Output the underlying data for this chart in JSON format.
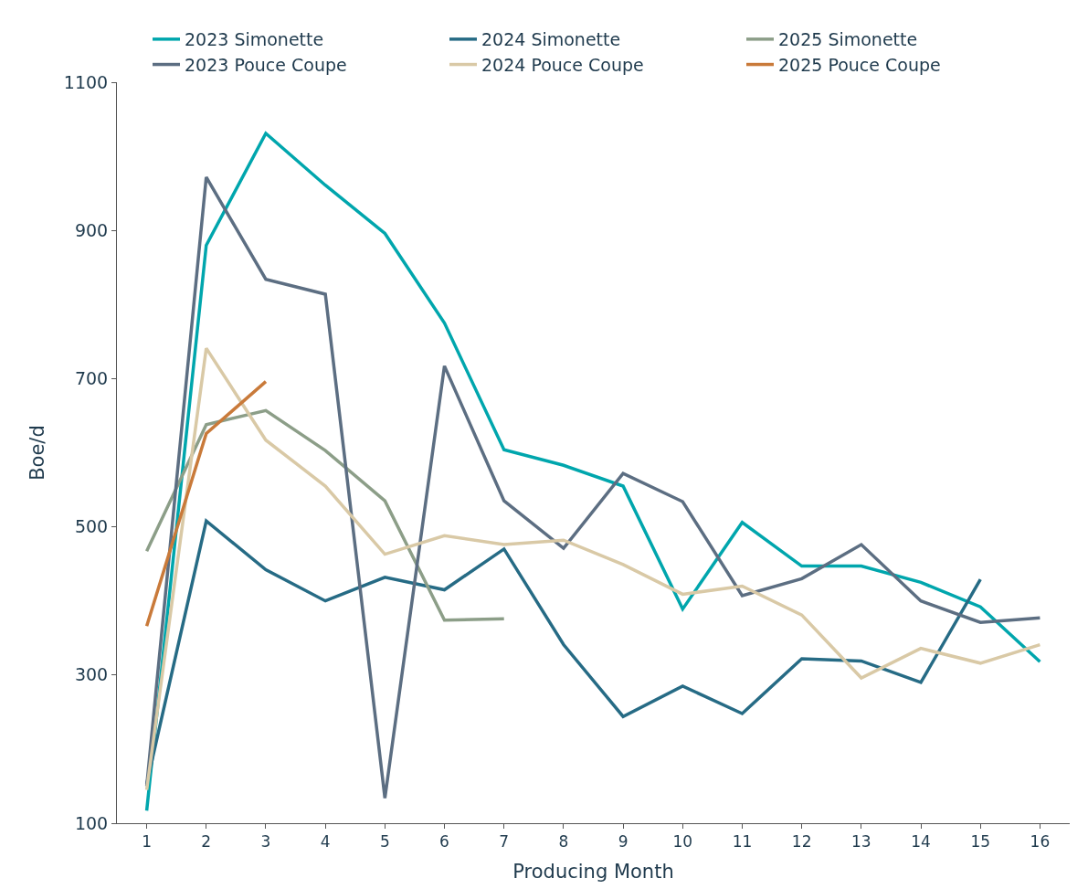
{
  "chart_data": {
    "type": "line",
    "xlabel": "Producing Month",
    "ylabel": "Boe/d",
    "x": [
      1,
      2,
      3,
      4,
      5,
      6,
      7,
      8,
      9,
      10,
      11,
      12,
      13,
      14,
      15,
      16
    ],
    "xlim": [
      0.5,
      16.5
    ],
    "xticks": [
      1,
      2,
      3,
      4,
      5,
      6,
      7,
      8,
      9,
      10,
      11,
      12,
      13,
      14,
      15,
      16
    ],
    "ylim": [
      100,
      1100
    ],
    "yticks": [
      100,
      300,
      500,
      700,
      900,
      1100
    ],
    "legend": "top",
    "marker": "none",
    "line_style": "solid",
    "series": [
      {
        "name": "2023 Simonette",
        "color": "#00a6ad",
        "values": [
          117,
          880,
          1031,
          961,
          896,
          775,
          604,
          583,
          555,
          389,
          506,
          447,
          447,
          425,
          392,
          318
        ]
      },
      {
        "name": "2024 Simonette",
        "color": "#266b85",
        "values": [
          153,
          508,
          442,
          400,
          432,
          415,
          470,
          341,
          244,
          285,
          248,
          322,
          319,
          290,
          429,
          null
        ]
      },
      {
        "name": "2025 Simonette",
        "color": "#8c9e88",
        "values": [
          467,
          638,
          657,
          603,
          535,
          374,
          376,
          null,
          null,
          null,
          null,
          null,
          null,
          null,
          null,
          null
        ]
      },
      {
        "name": "2023 Pouce Coupe",
        "color": "#5c6e82",
        "values": [
          150,
          972,
          834,
          814,
          134,
          717,
          535,
          471,
          572,
          534,
          407,
          430,
          476,
          400,
          371,
          377
        ]
      },
      {
        "name": "2024 Pouce Coupe",
        "color": "#d9c9a6",
        "values": [
          145,
          741,
          617,
          555,
          463,
          488,
          476,
          482,
          449,
          409,
          420,
          381,
          296,
          336,
          316,
          341
        ]
      },
      {
        "name": "2025 Pouce Coupe",
        "color": "#c97a3a",
        "values": [
          366,
          626,
          696,
          null,
          null,
          null,
          null,
          null,
          null,
          null,
          null,
          null,
          null,
          null,
          null,
          null
        ]
      }
    ]
  }
}
